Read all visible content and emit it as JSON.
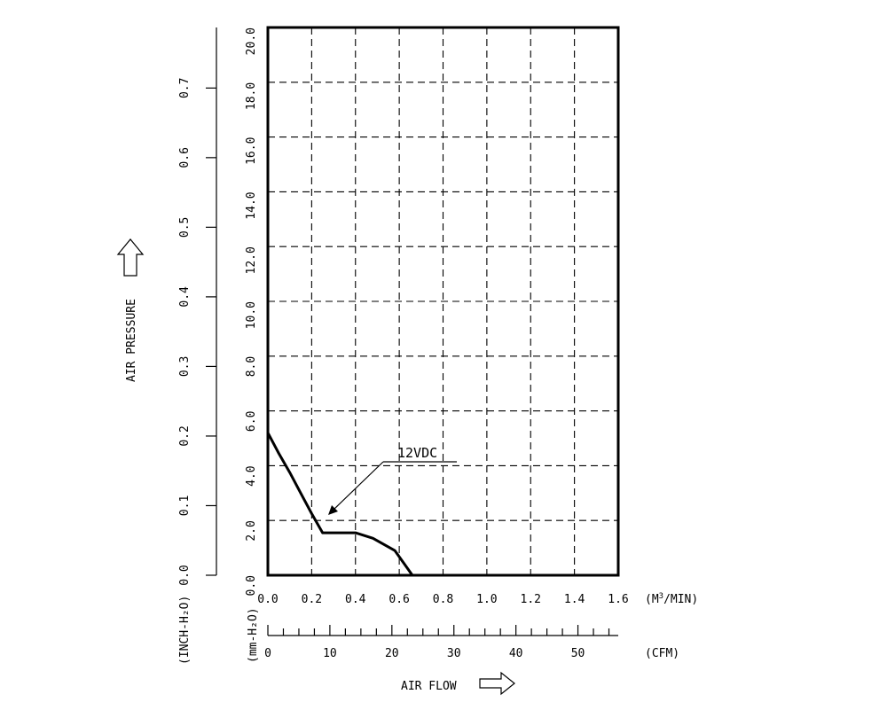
{
  "chart_data": {
    "type": "line",
    "title": "",
    "series": [
      {
        "name": "12VDC",
        "x": [
          0.0,
          0.05,
          0.1,
          0.15,
          0.2,
          0.25,
          0.33,
          0.4,
          0.48,
          0.58,
          0.66
        ],
        "y": [
          5.2,
          4.45,
          3.75,
          3.0,
          2.25,
          1.55,
          1.55,
          1.55,
          1.35,
          0.9,
          0.0
        ]
      }
    ],
    "x_axis": {
      "unit": "(M³/MIN)",
      "range": [
        0,
        1.6
      ],
      "ticks": [
        "0.0",
        "0.2",
        "0.4",
        "0.6",
        "0.8",
        "1.0",
        "1.2",
        "1.4",
        "1.6"
      ]
    },
    "x2_axis": {
      "unit": "(CFM)",
      "range": [
        0,
        56.5
      ],
      "ticks": [
        "0",
        "10",
        "20",
        "30",
        "40",
        "50"
      ]
    },
    "y_axis": {
      "unit": "(mm-H₂O)",
      "range": [
        0,
        20
      ],
      "ticks": [
        "0.0",
        "2.0",
        "4.0",
        "6.0",
        "8.0",
        "10.0",
        "12.0",
        "14.0",
        "16.0",
        "18.0",
        "20.0"
      ]
    },
    "y2_axis": {
      "unit": "(INCH-H₂O)",
      "range": [
        0,
        0.787
      ],
      "ticks": [
        "0.0",
        "0.1",
        "0.2",
        "0.3",
        "0.4",
        "0.5",
        "0.6",
        "0.7"
      ]
    },
    "xlabel": "AIR FLOW",
    "ylabel": "AIR PRESSURE",
    "grid": true,
    "grid_style": "dashed",
    "icons": [
      "arrow-right-icon",
      "arrow-up-icon"
    ]
  }
}
